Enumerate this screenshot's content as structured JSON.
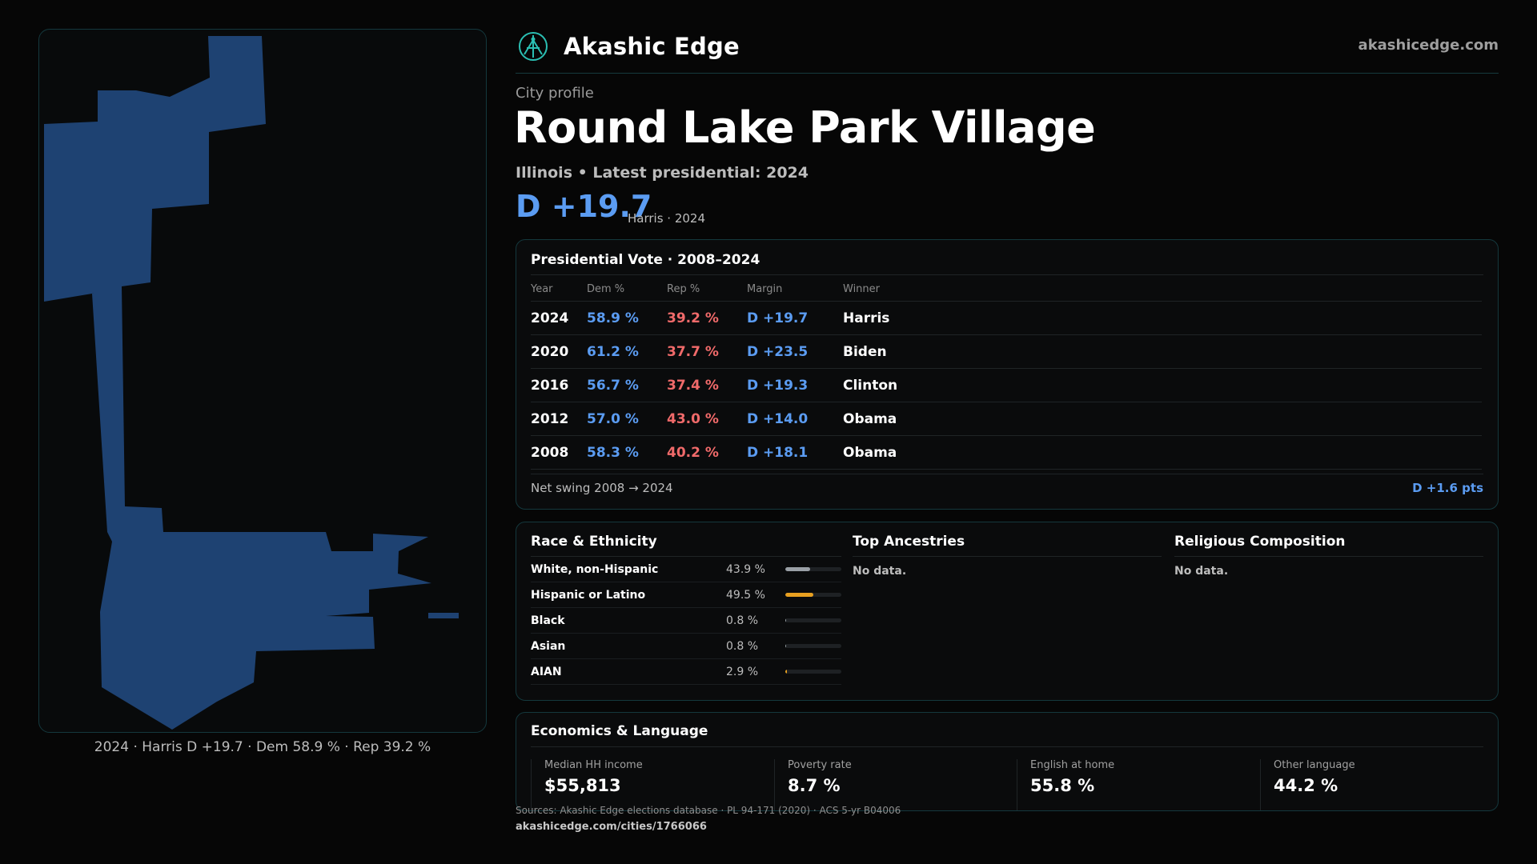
{
  "brand": {
    "name": "Akashic Edge",
    "site": "akashicedge.com",
    "logo_icon": "compass-emblem-icon",
    "accent": "#2bbfb3"
  },
  "profile": {
    "eyebrow": "City profile",
    "title": "Round Lake Park Village",
    "subline": "Illinois • Latest presidential: 2024",
    "margin": "D +19.7",
    "margin_note": "Harris · 2024"
  },
  "map": {
    "caption": "2024 · Harris D +19.7 · Dem 58.9 % · Rep 39.2 %",
    "fill": "#1e4272"
  },
  "vote": {
    "title": "Presidential Vote · 2008–2024",
    "headers": [
      "Year",
      "Dem %",
      "Rep %",
      "Margin",
      "Winner"
    ],
    "rows": [
      {
        "year": "2024",
        "dem": "58.9 %",
        "rep": "39.2 %",
        "margin": "D +19.7",
        "winner": "Harris"
      },
      {
        "year": "2020",
        "dem": "61.2 %",
        "rep": "37.7 %",
        "margin": "D +23.5",
        "winner": "Biden"
      },
      {
        "year": "2016",
        "dem": "56.7 %",
        "rep": "37.4 %",
        "margin": "D +19.3",
        "winner": "Clinton"
      },
      {
        "year": "2012",
        "dem": "57.0 %",
        "rep": "43.0 %",
        "margin": "D +14.0",
        "winner": "Obama"
      },
      {
        "year": "2008",
        "dem": "58.3 %",
        "rep": "40.2 %",
        "margin": "D +18.1",
        "winner": "Obama"
      }
    ],
    "swing_label": "Net swing 2008 → 2024",
    "swing_value": "D +1.6 pts",
    "colors": {
      "dem": "#5b9cf2",
      "rep": "#f06a6a"
    }
  },
  "race": {
    "title": "Race & Ethnicity",
    "rows": [
      {
        "label": "White, non-Hispanic",
        "pct": "43.9 %",
        "value": 0.439,
        "color": "#9aa0a6"
      },
      {
        "label": "Hispanic or Latino",
        "pct": "49.5 %",
        "value": 0.495,
        "color": "#e8a020"
      },
      {
        "label": "Black",
        "pct": "0.8 %",
        "value": 0.008,
        "color": "#9aa0a6"
      },
      {
        "label": "Asian",
        "pct": "0.8 %",
        "value": 0.008,
        "color": "#9aa0a6"
      },
      {
        "label": "AIAN",
        "pct": "2.9 %",
        "value": 0.029,
        "color": "#e8a020"
      }
    ]
  },
  "ancestries": {
    "title": "Top Ancestries",
    "empty": "No data."
  },
  "religion": {
    "title": "Religious Composition",
    "empty": "No data."
  },
  "economics": {
    "title": "Economics & Language",
    "stats": [
      {
        "label": "Median HH income",
        "value": "$55,813"
      },
      {
        "label": "Poverty rate",
        "value": "8.7 %"
      },
      {
        "label": "English at home",
        "value": "55.8 %"
      },
      {
        "label": "Other language",
        "value": "44.2 %"
      }
    ]
  },
  "footer": {
    "sources": "Sources: Akashic Edge elections database · PL 94-171 (2020) · ACS 5-yr B04006",
    "permalink": "akashicedge.com/cities/1766066"
  }
}
